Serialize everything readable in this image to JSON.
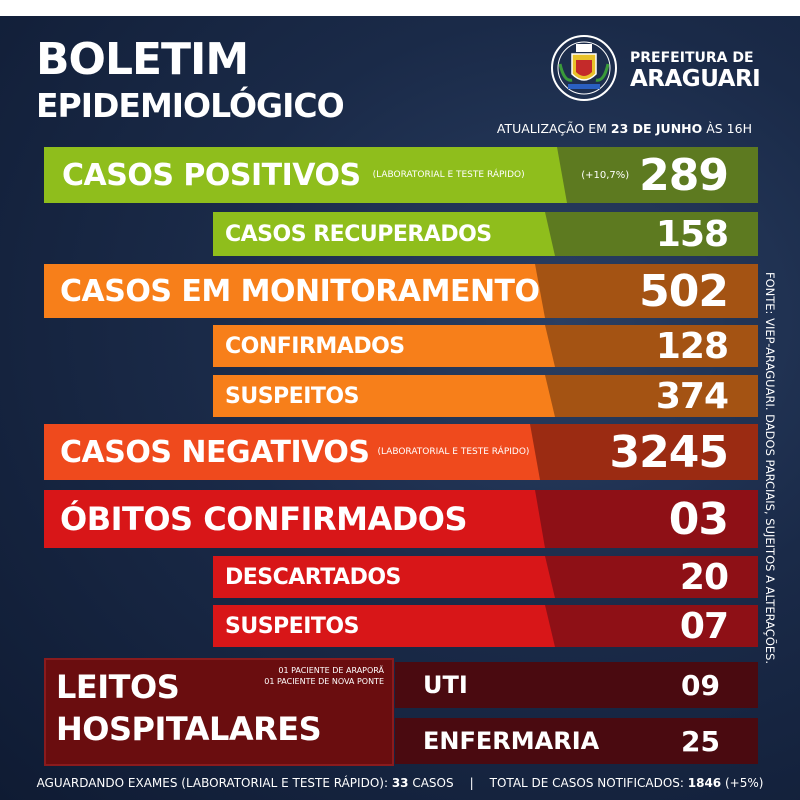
{
  "header": {
    "title_line1": "BOLETIM",
    "title_line2": "EPIDEMIOLÓGICO",
    "prefeitura_label": "PREFEITURA DE",
    "prefeitura_city": "ARAGUARI",
    "update_prefix": "ATUALIZAÇÃO EM ",
    "update_date": "23 DE JUNHO",
    "update_suffix": " ÀS 16H"
  },
  "colors": {
    "green": "#8fbe1c",
    "green_dark": "#5d7a20",
    "orange": "#f77f1a",
    "orange_dark": "#a45313",
    "red_orange": "#ef4a1d",
    "red_orange_dark": "#9b2b12",
    "red": "#d81618",
    "red_dark": "#8e1016",
    "dark_red": "#6a0d0f"
  },
  "stats": {
    "positivos": {
      "label": "CASOS POSITIVOS",
      "note": "(LABORATORIAL E TESTE RÁPIDO)",
      "change": "(+10,7%)",
      "value": "289"
    },
    "recuperados": {
      "label": "CASOS RECUPERADOS",
      "value": "158"
    },
    "monitoramento": {
      "label": "CASOS EM MONITORAMENTO",
      "value": "502"
    },
    "confirmados": {
      "label": "CONFIRMADOS",
      "value": "128"
    },
    "suspeitos_mon": {
      "label": "SUSPEITOS",
      "value": "374"
    },
    "negativos": {
      "label": "CASOS NEGATIVOS",
      "note": "(LABORATORIAL E TESTE RÁPIDO)",
      "value": "3245"
    },
    "obitos": {
      "label": "ÓBITOS CONFIRMADOS",
      "value": "03"
    },
    "descartados": {
      "label": "DESCARTADOS",
      "value": "20"
    },
    "suspeitos_obitos": {
      "label": "SUSPEITOS",
      "value": "07"
    }
  },
  "leitos": {
    "title_line1": "LEITOS",
    "title_line2": "HOSPITALARES",
    "note_line1": "01 PACIENTE DE ARAPORÃ",
    "note_line2": "01 PACIENTE DE NOVA PONTE",
    "uti_label": "UTI",
    "uti_value": "09",
    "enfermaria_label": "ENFERMARIA",
    "enfermaria_value": "25"
  },
  "source_text": "FONTE: VIEP-ARAGUARI. DADOS PARCIAIS, SUJEITOS A ALTERAÇÕES.",
  "footer": {
    "aguardando_label": "AGUARDANDO EXAMES (LABORATORIAL E TESTE RÁPIDO): ",
    "aguardando_value": "33",
    "aguardando_unit": " CASOS",
    "separator": "|",
    "total_label": "TOTAL DE CASOS NOTIFICADOS: ",
    "total_value": "1846",
    "total_change": " (+5%)"
  }
}
